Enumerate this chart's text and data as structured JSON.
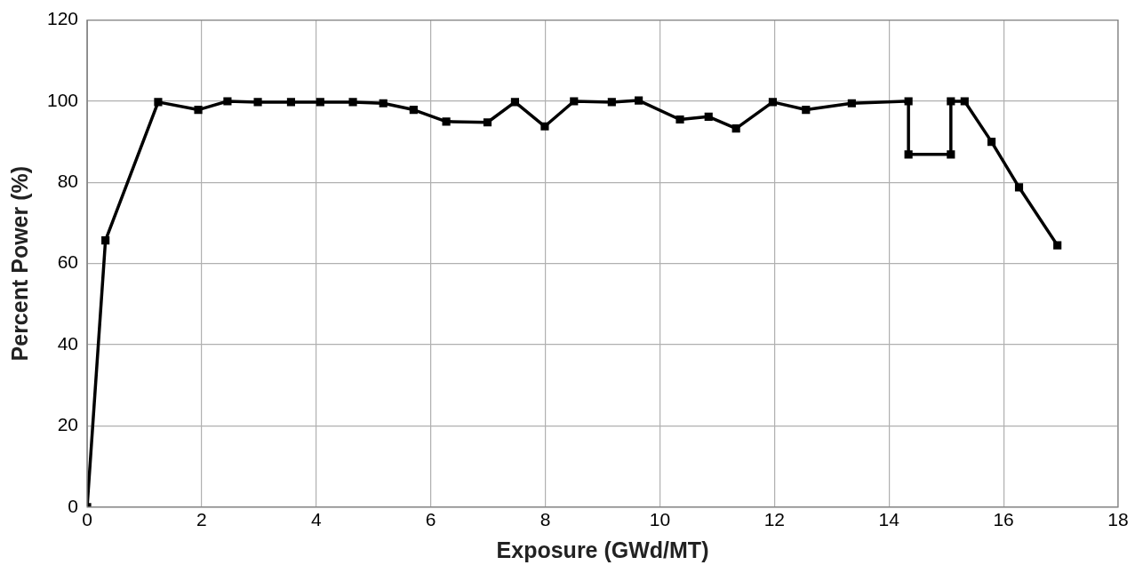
{
  "chart_data": {
    "type": "line",
    "xlabel": "Exposure (GWd/MT)",
    "ylabel": "Percent Power (%)",
    "x": [
      0,
      0.32,
      1.24,
      1.94,
      2.45,
      2.98,
      3.56,
      4.07,
      4.64,
      5.17,
      5.7,
      6.27,
      6.99,
      7.47,
      7.99,
      8.5,
      9.16,
      9.63,
      10.35,
      10.85,
      11.33,
      11.97,
      12.55,
      13.35,
      14.34,
      14.34,
      15.08,
      15.08,
      15.32,
      15.79,
      16.27,
      16.94
    ],
    "series": [
      {
        "color": "#000000",
        "values": [
          0,
          65.7,
          99.8,
          97.9,
          100,
          99.8,
          99.8,
          99.8,
          99.8,
          99.5,
          97.9,
          95,
          94.8,
          99.8,
          93.8,
          100,
          99.8,
          100.2,
          95.5,
          96.2,
          93.3,
          99.8,
          97.9,
          99.5,
          100,
          86.9,
          86.9,
          100,
          100,
          90,
          78.8,
          64.5
        ]
      }
    ],
    "xlim": [
      0,
      18
    ],
    "xticks": [
      0,
      2,
      4,
      6,
      8,
      10,
      12,
      14,
      16,
      18
    ],
    "ylim": [
      0,
      120
    ],
    "yticks": [
      0,
      20,
      40,
      60,
      80,
      100,
      120
    ],
    "grid": true,
    "legend": false,
    "marker": "square",
    "line_style": "solid"
  }
}
